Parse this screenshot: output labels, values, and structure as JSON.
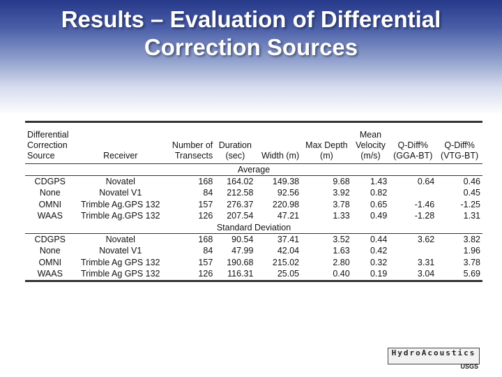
{
  "title": {
    "line1": "Results – Evaluation of Differential",
    "line2": "Correction Sources"
  },
  "table": {
    "headers": {
      "source": [
        "Differential",
        "Correction",
        "Source"
      ],
      "receiver": "Receiver",
      "transects": [
        "Number of",
        "Transects"
      ],
      "duration": [
        "Duration",
        "(sec)"
      ],
      "width": "Width (m)",
      "max_depth": [
        "Max Depth",
        "(m)"
      ],
      "velocity": [
        "Mean",
        "Velocity",
        "(m/s)"
      ],
      "qdiff_gga": [
        "Q-Diff%",
        "(GGA-BT)"
      ],
      "qdiff_vtg": [
        "Q-Diff%",
        "(VTG-BT)"
      ]
    },
    "average_label": "Average",
    "average_rows": [
      {
        "source": "CDGPS",
        "receiver": "Novatel",
        "transects": "168",
        "duration": "164.02",
        "width": "149.38",
        "max_depth": "9.68",
        "velocity": "1.43",
        "qdiff_gga": "0.64",
        "qdiff_vtg": "0.46"
      },
      {
        "source": "None",
        "receiver": "Novatel V1",
        "transects": "84",
        "duration": "212.58",
        "width": "92.56",
        "max_depth": "3.92",
        "velocity": "0.82",
        "qdiff_gga": "",
        "qdiff_vtg": "0.45"
      },
      {
        "source": "OMNI",
        "receiver": "Trimble Ag.GPS 132",
        "transects": "157",
        "duration": "276.37",
        "width": "220.98",
        "max_depth": "3.78",
        "velocity": "0.65",
        "qdiff_gga": "-1.46",
        "qdiff_vtg": "-1.25"
      },
      {
        "source": "WAAS",
        "receiver": "Trimble Ag.GPS 132",
        "transects": "126",
        "duration": "207.54",
        "width": "47.21",
        "max_depth": "1.33",
        "velocity": "0.49",
        "qdiff_gga": "-1.28",
        "qdiff_vtg": "1.31"
      }
    ],
    "std_label": "Standard Deviation",
    "std_rows": [
      {
        "source": "CDGPS",
        "receiver": "Novatel",
        "transects": "168",
        "duration": "90.54",
        "width": "37.41",
        "max_depth": "3.52",
        "velocity": "0.44",
        "qdiff_gga": "3.62",
        "qdiff_vtg": "3.82"
      },
      {
        "source": "None",
        "receiver": "Novatel V1",
        "transects": "84",
        "duration": "47.99",
        "width": "42.04",
        "max_depth": "1.63",
        "velocity": "0.42",
        "qdiff_gga": "",
        "qdiff_vtg": "1.96"
      },
      {
        "source": "OMNI",
        "receiver": "Trimble Ag GPS 132",
        "transects": "157",
        "duration": "190.68",
        "width": "215.02",
        "max_depth": "2.80",
        "velocity": "0.32",
        "qdiff_gga": "3.31",
        "qdiff_vtg": "3.78"
      },
      {
        "source": "WAAS",
        "receiver": "Trimble Ag GPS 132",
        "transects": "126",
        "duration": "116.31",
        "width": "25.05",
        "max_depth": "0.40",
        "velocity": "0.19",
        "qdiff_gga": "3.04",
        "qdiff_vtg": "5.69"
      }
    ]
  },
  "logo": {
    "text": "HydroAcoustics",
    "agency": "USGS"
  },
  "colors": {
    "header_blue": "#27398a",
    "title_text": "#ffffff"
  }
}
